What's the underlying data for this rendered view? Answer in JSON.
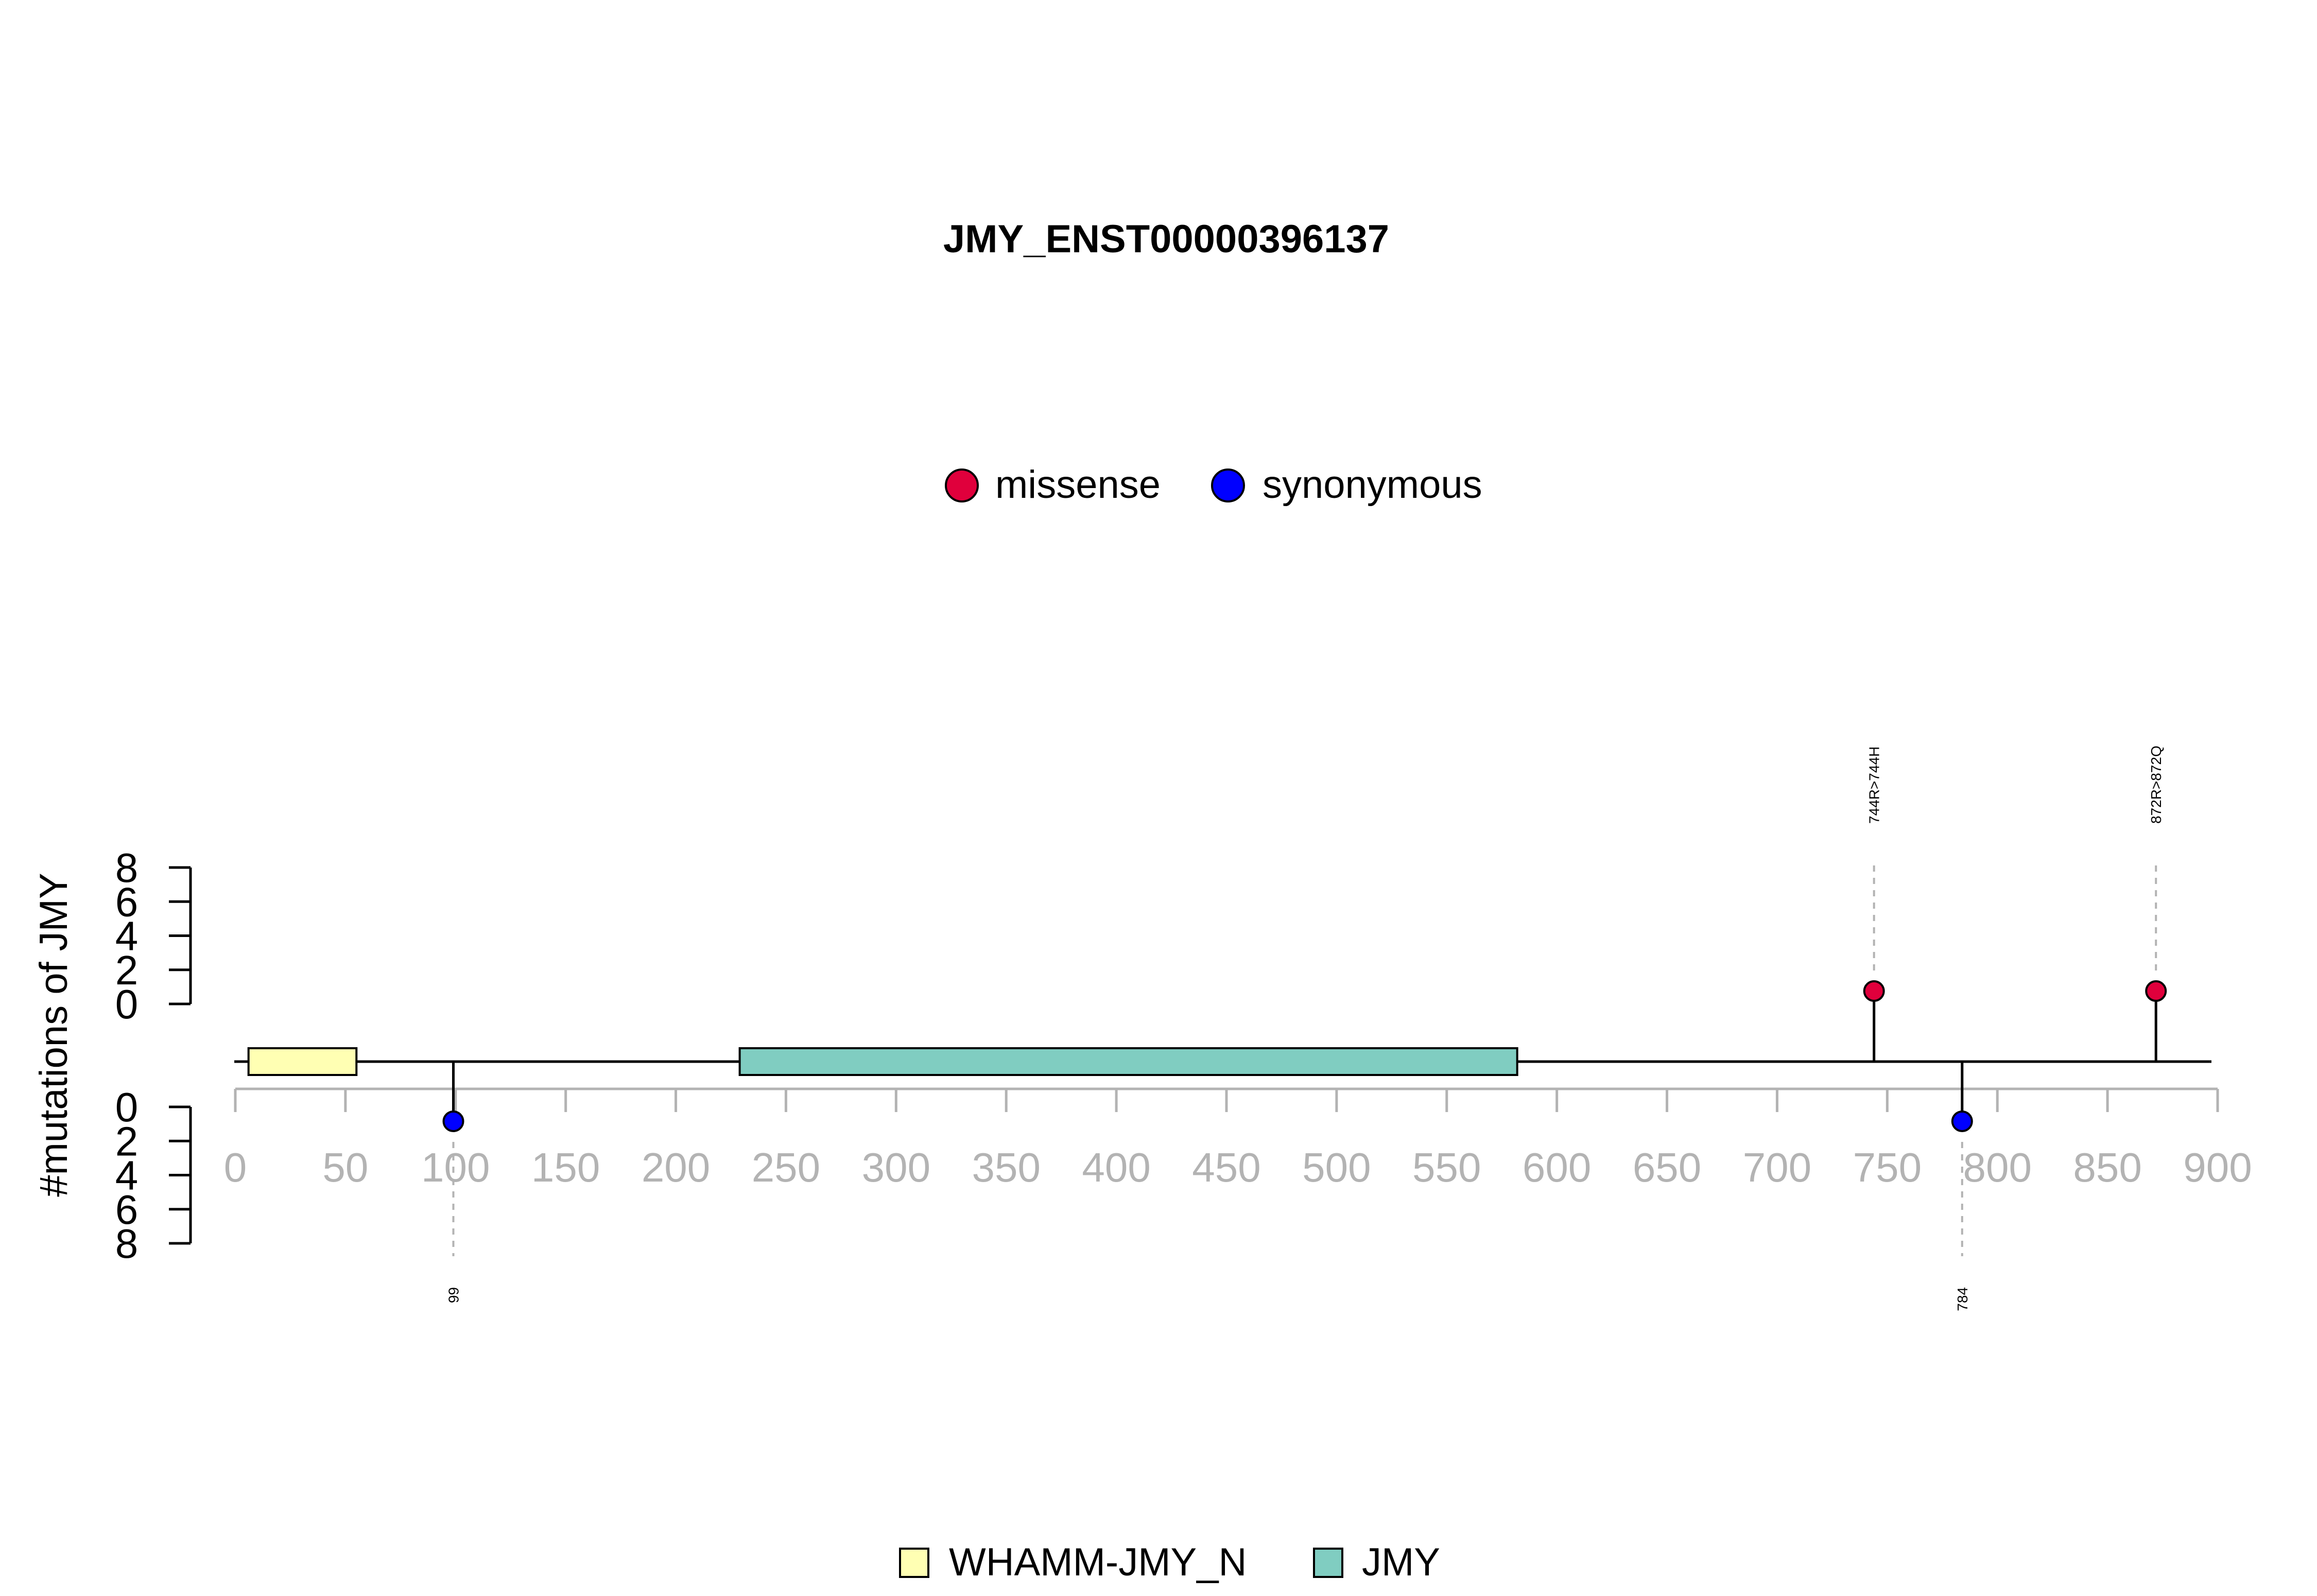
{
  "chart_data": {
    "type": "lollipop",
    "title": "JMY_ENST00000396137",
    "ylabel": "#mutations of JMY",
    "xlim": [
      0,
      900
    ],
    "x_ticks": [
      0,
      50,
      100,
      150,
      200,
      250,
      300,
      350,
      400,
      450,
      500,
      550,
      600,
      650,
      700,
      750,
      800,
      850,
      900
    ],
    "y_top_ticks": [
      0,
      2,
      4,
      6,
      8
    ],
    "y_bottom_ticks": [
      0,
      2,
      4,
      6,
      8
    ],
    "y_range": [
      0,
      8
    ],
    "mutation_legend": [
      {
        "label": "missense",
        "color": "#e0003c"
      },
      {
        "label": "synonymous",
        "color": "#0000ff"
      }
    ],
    "domain_legend": [
      {
        "label": "WHAMM-JMY_N",
        "color": "#ffffb3"
      },
      {
        "label": "JMY",
        "color": "#80cdc1"
      }
    ],
    "domains": [
      {
        "name": "WHAMM-JMY_N",
        "start": 6,
        "end": 55,
        "color": "#ffffb3"
      },
      {
        "name": "JMY",
        "start": 229,
        "end": 582,
        "color": "#80cdc1"
      }
    ],
    "mutations_above": [
      {
        "position": 744,
        "count": 1,
        "type": "missense",
        "label": "744R>744H"
      },
      {
        "position": 872,
        "count": 1,
        "type": "missense",
        "label": "872R>872Q"
      }
    ],
    "mutations_below": [
      {
        "position": 99,
        "count": 1,
        "type": "synonymous",
        "label": "99"
      },
      {
        "position": 784,
        "count": 1,
        "type": "synonymous",
        "label": "784"
      }
    ]
  }
}
